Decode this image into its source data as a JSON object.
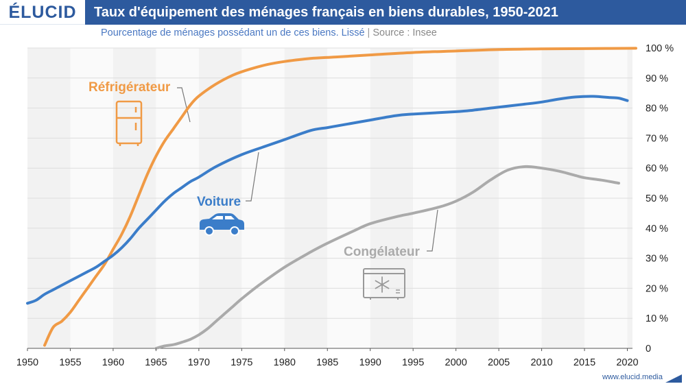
{
  "header": {
    "logo": "ÉLUCID",
    "title": "Taux d'équipement des ménages français en biens durables, 1950-2021",
    "subtitle": "Pourcentage de ménages possédant un de ces biens. Lissé",
    "separator": "|",
    "source": "Source : Insee"
  },
  "footer": {
    "url": "www.elucid.media"
  },
  "colors": {
    "brand": "#2d5a9e",
    "refrigerateur": "#f09a45",
    "voiture": "#3b7dc9",
    "congelateur": "#aaaaaa"
  },
  "icons": [
    "refrigerator-icon",
    "car-icon",
    "freezer-icon"
  ],
  "chart_data": {
    "type": "line",
    "grid": true,
    "xlim": [
      1950,
      2021
    ],
    "ylim": [
      0,
      100
    ],
    "x_ticks": [
      "1950",
      "1955",
      "1960",
      "1965",
      "1970",
      "1975",
      "1980",
      "1985",
      "1990",
      "1995",
      "2000",
      "2005",
      "2010",
      "2015",
      "2020"
    ],
    "y_ticks": [
      "0",
      "10 %",
      "20 %",
      "30 %",
      "40 %",
      "50 %",
      "60 %",
      "70 %",
      "80 %",
      "90 %",
      "100 %"
    ],
    "series": [
      {
        "name": "Réfrigérateur",
        "color": "#f09a45",
        "points": [
          [
            1952,
            1
          ],
          [
            1953,
            7
          ],
          [
            1954,
            9
          ],
          [
            1955,
            12
          ],
          [
            1956,
            16
          ],
          [
            1957,
            20
          ],
          [
            1958,
            24
          ],
          [
            1959,
            28
          ],
          [
            1960,
            33
          ],
          [
            1961,
            38
          ],
          [
            1962,
            44
          ],
          [
            1963,
            51
          ],
          [
            1964,
            58
          ],
          [
            1965,
            64
          ],
          [
            1966,
            69
          ],
          [
            1967,
            73
          ],
          [
            1968,
            77
          ],
          [
            1969,
            81
          ],
          [
            1970,
            84
          ],
          [
            1972,
            88
          ],
          [
            1974,
            91
          ],
          [
            1976,
            93
          ],
          [
            1978,
            94.5
          ],
          [
            1980,
            95.5
          ],
          [
            1983,
            96.5
          ],
          [
            1986,
            97
          ],
          [
            1990,
            97.7
          ],
          [
            1995,
            98.5
          ],
          [
            2000,
            99
          ],
          [
            2005,
            99.5
          ],
          [
            2010,
            99.7
          ],
          [
            2015,
            99.8
          ],
          [
            2021,
            99.9
          ]
        ]
      },
      {
        "name": "Voiture",
        "color": "#3b7dc9",
        "points": [
          [
            1950,
            15
          ],
          [
            1951,
            16
          ],
          [
            1952,
            18
          ],
          [
            1953,
            19.5
          ],
          [
            1954,
            21
          ],
          [
            1955,
            22.5
          ],
          [
            1956,
            24
          ],
          [
            1957,
            25.5
          ],
          [
            1958,
            27
          ],
          [
            1959,
            29
          ],
          [
            1960,
            31
          ],
          [
            1961,
            33.5
          ],
          [
            1962,
            36.5
          ],
          [
            1963,
            40
          ],
          [
            1964,
            43
          ],
          [
            1965,
            46
          ],
          [
            1966,
            49
          ],
          [
            1967,
            51.5
          ],
          [
            1968,
            53.5
          ],
          [
            1969,
            55.5
          ],
          [
            1970,
            57
          ],
          [
            1972,
            60.5
          ],
          [
            1975,
            64.5
          ],
          [
            1978,
            67.5
          ],
          [
            1980,
            69.5
          ],
          [
            1983,
            72.5
          ],
          [
            1985,
            73.5
          ],
          [
            1987,
            74.5
          ],
          [
            1990,
            76
          ],
          [
            1993,
            77.5
          ],
          [
            1995,
            78
          ],
          [
            2000,
            78.8
          ],
          [
            2002,
            79.3
          ],
          [
            2005,
            80.3
          ],
          [
            2008,
            81.3
          ],
          [
            2010,
            82
          ],
          [
            2012,
            83
          ],
          [
            2014,
            83.7
          ],
          [
            2016,
            83.9
          ],
          [
            2018,
            83.5
          ],
          [
            2019,
            83.3
          ],
          [
            2020,
            82.5
          ]
        ]
      },
      {
        "name": "Congélateur",
        "color": "#aaaaaa",
        "points": [
          [
            1965,
            0
          ],
          [
            1966,
            0.8
          ],
          [
            1967,
            1.2
          ],
          [
            1968,
            2
          ],
          [
            1969,
            3
          ],
          [
            1970,
            4.5
          ],
          [
            1971,
            6.5
          ],
          [
            1972,
            9
          ],
          [
            1973,
            11.5
          ],
          [
            1974,
            14
          ],
          [
            1975,
            16.5
          ],
          [
            1977,
            21
          ],
          [
            1980,
            27
          ],
          [
            1983,
            32
          ],
          [
            1985,
            35
          ],
          [
            1988,
            39
          ],
          [
            1990,
            41.5
          ],
          [
            1993,
            43.8
          ],
          [
            1995,
            45
          ],
          [
            1998,
            47
          ],
          [
            2000,
            49
          ],
          [
            2002,
            52
          ],
          [
            2004,
            56
          ],
          [
            2006,
            59.3
          ],
          [
            2008,
            60.5
          ],
          [
            2010,
            60
          ],
          [
            2012,
            59
          ],
          [
            2014,
            57.5
          ],
          [
            2015,
            56.8
          ],
          [
            2017,
            56
          ],
          [
            2019,
            55
          ]
        ]
      }
    ],
    "annotations": [
      {
        "series": "Réfrigérateur",
        "text": "Réfrigérateur"
      },
      {
        "series": "Voiture",
        "text": "Voiture"
      },
      {
        "series": "Congélateur",
        "text": "Congélateur"
      }
    ]
  }
}
